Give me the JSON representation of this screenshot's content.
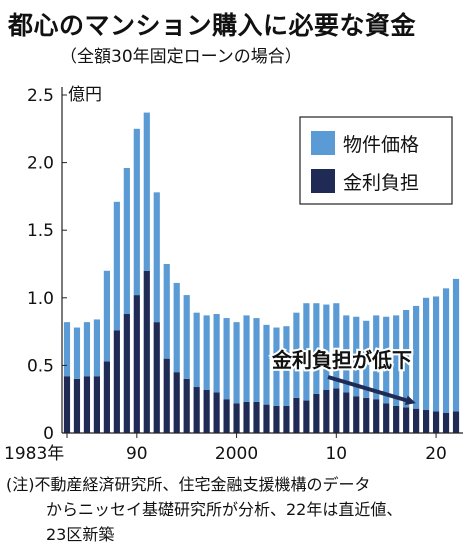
{
  "title": "都心のマンション購入に必要な資金",
  "subtitle": "（全額30年固定ローンの場合）",
  "notes": [
    "(注)不動産経済研究所、住宅金融支援機構のデータ",
    "からニッセイ基礎研究所が分析、22年は直近値、",
    "23区新築"
  ],
  "chart_data": {
    "type": "bar",
    "stacked": true,
    "ylabel": "億円",
    "ylim": [
      0,
      2.5
    ],
    "yticks": [
      "0",
      "0.5",
      "1.0",
      "1.5",
      "2.0",
      "2.5"
    ],
    "xticks": [
      {
        "year": 1983,
        "label": "1983年"
      },
      {
        "year": 1990,
        "label": "90"
      },
      {
        "year": 2000,
        "label": "2000"
      },
      {
        "year": 2010,
        "label": "10"
      },
      {
        "year": 2020,
        "label": "20"
      }
    ],
    "categories": [
      1983,
      1984,
      1985,
      1986,
      1987,
      1988,
      1989,
      1990,
      1991,
      1992,
      1993,
      1994,
      1995,
      1996,
      1997,
      1998,
      1999,
      2000,
      2001,
      2002,
      2003,
      2004,
      2005,
      2006,
      2007,
      2008,
      2009,
      2010,
      2011,
      2012,
      2013,
      2014,
      2015,
      2016,
      2017,
      2018,
      2019,
      2020,
      2021,
      2022
    ],
    "series": [
      {
        "name": "金利負担",
        "color": "#1f2a55",
        "values": [
          0.42,
          0.4,
          0.42,
          0.42,
          0.53,
          0.76,
          0.88,
          1.02,
          1.2,
          0.82,
          0.55,
          0.45,
          0.4,
          0.34,
          0.32,
          0.3,
          0.25,
          0.22,
          0.23,
          0.23,
          0.21,
          0.2,
          0.2,
          0.26,
          0.24,
          0.29,
          0.32,
          0.33,
          0.3,
          0.27,
          0.26,
          0.25,
          0.22,
          0.2,
          0.19,
          0.18,
          0.17,
          0.16,
          0.15,
          0.16
        ]
      },
      {
        "name": "物件価格",
        "color": "#5b9bd5",
        "values": [
          0.4,
          0.38,
          0.4,
          0.42,
          0.67,
          0.95,
          1.08,
          1.23,
          1.17,
          0.96,
          0.7,
          0.66,
          0.62,
          0.55,
          0.55,
          0.58,
          0.6,
          0.6,
          0.64,
          0.62,
          0.59,
          0.58,
          0.59,
          0.63,
          0.72,
          0.67,
          0.63,
          0.63,
          0.57,
          0.59,
          0.57,
          0.62,
          0.64,
          0.67,
          0.72,
          0.76,
          0.83,
          0.85,
          0.92,
          0.98
        ]
      }
    ],
    "totals": [
      0.82,
      0.78,
      0.82,
      0.84,
      1.2,
      1.71,
      1.96,
      2.25,
      2.37,
      1.78,
      1.25,
      1.11,
      1.02,
      0.89,
      0.87,
      0.88,
      0.85,
      0.82,
      0.87,
      0.85,
      0.8,
      0.78,
      0.79,
      0.89,
      0.96,
      0.96,
      0.95,
      0.96,
      0.87,
      0.86,
      0.83,
      0.87,
      0.86,
      0.87,
      0.91,
      0.94,
      1.0,
      1.01,
      1.07,
      1.14
    ],
    "legend": [
      "物件価格",
      "金利負担"
    ],
    "legend_position": "top-right",
    "annotation": "金利負担が低下",
    "grid": false
  }
}
